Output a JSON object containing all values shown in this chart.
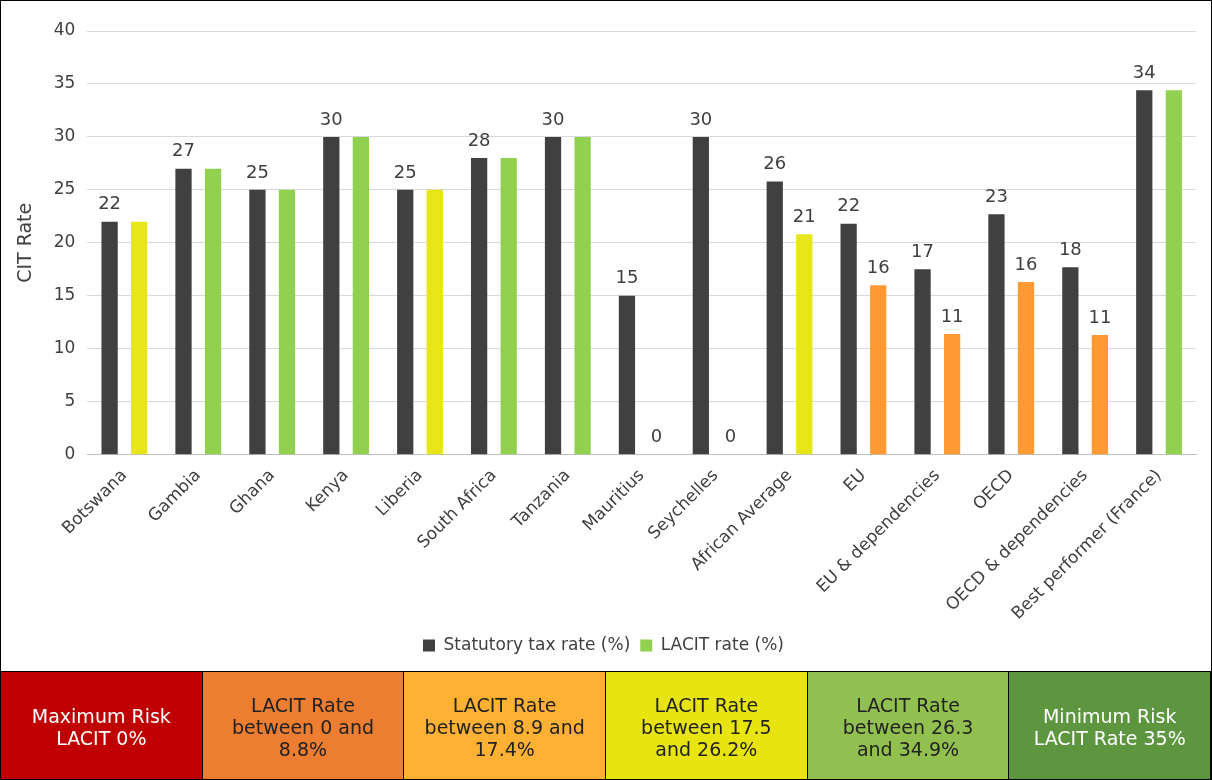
{
  "chart_data": {
    "type": "bar",
    "categories": [
      "Botswana",
      "Gambia",
      "Ghana",
      "Kenya",
      "Liberia",
      "South Africa",
      "Tanzania",
      "Mauritius",
      "Seychelles",
      "African Average",
      "EU",
      "EU & dependencies",
      "OECD",
      "OECD & dependencies",
      "Best performer (France)"
    ],
    "series": [
      {
        "name": "Statutory tax rate (%)",
        "color": "#404040",
        "values": [
          22,
          27,
          25,
          30,
          25,
          28,
          30,
          15,
          30,
          25.8,
          21.8,
          17.5,
          22.7,
          17.7,
          34.4
        ],
        "value_labels": [
          "22",
          "27",
          "25",
          "30",
          "25",
          "28",
          "30",
          "15",
          "30",
          "26",
          "22",
          "17",
          "23",
          "18",
          "34"
        ]
      },
      {
        "name": "LACIT rate (%)",
        "color": "#92d050",
        "colors": [
          "#e6e619",
          "#92d050",
          "#92d050",
          "#92d050",
          "#e6e619",
          "#92d050",
          "#92d050",
          "#e6e619",
          "#e6e619",
          "#e6e619",
          "#ff9933",
          "#ff9933",
          "#ff9933",
          "#ff9933",
          "#92d050"
        ],
        "values": [
          22,
          27,
          25,
          30,
          25,
          28,
          30,
          0,
          0,
          20.8,
          16,
          11.4,
          16.3,
          11.3,
          34.4
        ],
        "value_labels": [
          null,
          null,
          null,
          null,
          null,
          null,
          null,
          "0",
          "0",
          "21",
          "16",
          "11",
          "16",
          "11",
          null
        ]
      }
    ],
    "ylabel": "CIT Rate",
    "ylim": [
      0,
      40
    ],
    "yticks": [
      0,
      5,
      10,
      15,
      20,
      25,
      30,
      35,
      40
    ],
    "grid": "y",
    "legend": "bottom",
    "annotations": [
      "Maximum Risk LACIT 0%",
      "LACIT Rate between 0 and 8.8%",
      "LACIT Rate between 8.9 and 17.4%",
      "LACIT Rate between 17.5 and 26.2%",
      "LACIT Rate between 26.3 and 34.9%",
      "Minimum Risk LACIT Rate 35%"
    ]
  }
}
